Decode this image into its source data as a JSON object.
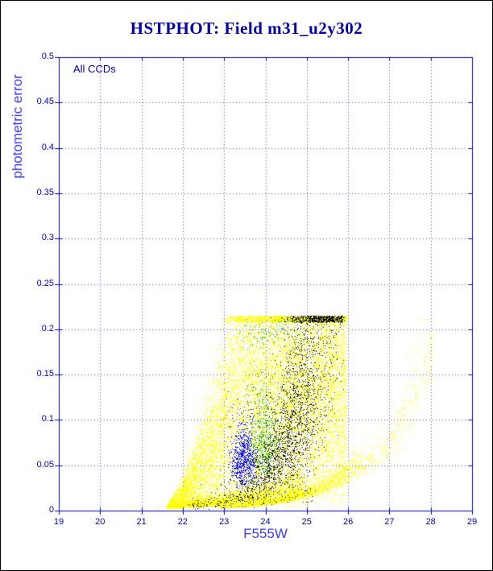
{
  "chart_data": {
    "type": "scatter",
    "title": "HSTPHOT: Field m31_u2y302",
    "annotation": "All CCDs",
    "xlabel": "F555W",
    "ylabel": "photometric error",
    "xlim": [
      19,
      29
    ],
    "ylim": [
      0,
      0.5
    ],
    "x_ticks": [
      19,
      20,
      21,
      22,
      23,
      24,
      25,
      26,
      27,
      28,
      29
    ],
    "x_tick_labels": [
      "19",
      "20",
      "21",
      "22",
      "23",
      "24",
      "25",
      "26",
      "27",
      "28",
      "29"
    ],
    "y_ticks": [
      0,
      0.05,
      0.1,
      0.15,
      0.2,
      0.25,
      0.3,
      0.35,
      0.4,
      0.45,
      0.5
    ],
    "y_tick_labels": [
      "0",
      "0.05",
      "0.1",
      "0.15",
      "0.2",
      "0.25",
      "0.3",
      "0.35",
      "0.4",
      "0.45",
      "0.5"
    ],
    "grid": "dotted-major",
    "legend": "none",
    "error_cap": 0.215,
    "palette": {
      "title": "#0000aa",
      "axis": "#0000cc",
      "grid": "#4444cc",
      "axis_label": "#3c3cff",
      "tick_label": "#0000cc",
      "background": "#ffffff",
      "frame_border": "#000000"
    },
    "series": [
      {
        "name": "all-ccds-main (yellow)",
        "color": "#ffff00"
      },
      {
        "name": "ccd-overlay-black",
        "color": "#000000"
      },
      {
        "name": "ccd-overlay-green",
        "color": "#00b400"
      },
      {
        "name": "ccd-overlay-blue",
        "color": "#0000ff"
      }
    ],
    "point_clusters": [
      {
        "name": "yellow-main-cloud",
        "color": "#ffff00",
        "kind": "fan",
        "n": 14000,
        "x_min": 21.6,
        "x_max": 25.95,
        "x_bias": 0.75,
        "env_x0": 21.5,
        "env_scale": 1.85,
        "env_pow": 1.5,
        "y_cap": 0.215,
        "y_bias": 0.6,
        "jitter": 0.25
      },
      {
        "name": "yellow-bottom-edge",
        "color": "#ffff00",
        "kind": "ridge",
        "n": 3000,
        "x_min": 21.65,
        "x_max": 24.9,
        "a": 0.006,
        "b": 0.45,
        "x0": 21.6,
        "s": 0.35,
        "y_cap": 0.215
      },
      {
        "name": "yellow-second-sequence",
        "color": "#ffff00",
        "kind": "ridge",
        "n": 2000,
        "x_min": 22.9,
        "x_max": 26.35,
        "a": 0.0042,
        "b": 0.78,
        "x0": 23.0,
        "s": 0.17,
        "y_cap": 0.215
      },
      {
        "name": "yellow-right-arc",
        "color": "#ffff00",
        "kind": "ridge",
        "n": 400,
        "x_min": 26.35,
        "x_max": 28.1,
        "a": 0.048,
        "b": 0.8,
        "x0": 26.4,
        "s": 0.16,
        "y_cap": 0.215
      },
      {
        "name": "yellow-left-sparse",
        "color": "#ffff00",
        "kind": "band",
        "n": 14,
        "x_min": 19.95,
        "x_max": 21.5,
        "y_lo": 0.002,
        "y_hi": 0.007
      },
      {
        "name": "yellow-top-right-sparse",
        "color": "#ffff00",
        "kind": "band",
        "n": 22,
        "x_min": 27.3,
        "x_max": 28.05,
        "y_lo": 0.17,
        "y_hi": 0.213
      },
      {
        "name": "black-deep-ridge",
        "color": "#000000",
        "kind": "ridge",
        "n": 2700,
        "x_mu": 24.75,
        "x_sigma": 0.7,
        "x_min": 22.8,
        "x_max": 25.9,
        "a": 0.02,
        "b": 1.0,
        "x0": 23.0,
        "s": 0.5,
        "y_cap": 0.215
      },
      {
        "name": "black-bottom-sparse",
        "color": "#000000",
        "kind": "ridge",
        "n": 220,
        "x_min": 22.1,
        "x_max": 25.2,
        "a": 0.006,
        "b": 0.5,
        "x0": 22.0,
        "s": 0.5,
        "y_cap": 0.215
      },
      {
        "name": "green-clump",
        "color": "#00b400",
        "kind": "blob",
        "n": 430,
        "x_mu": 23.95,
        "x_sigma": 0.19,
        "x_min": 23.4,
        "x_max": 24.55,
        "y_med": 0.085,
        "y_s": 0.38,
        "y_lo": 0.03,
        "y_hi": 0.175
      },
      {
        "name": "green-top-band",
        "color": "#00b400",
        "kind": "blob",
        "n": 140,
        "x_mu": 24.15,
        "x_sigma": 0.45,
        "x_min": 23.2,
        "x_max": 25.3,
        "y_med": 0.195,
        "y_s": 0.05,
        "y_lo": 0.165,
        "y_hi": 0.213
      },
      {
        "name": "blue-clump",
        "color": "#0000ff",
        "kind": "blob",
        "n": 800,
        "x_mu": 23.45,
        "x_sigma": 0.16,
        "x_min": 23.0,
        "x_max": 23.95,
        "y_med": 0.06,
        "y_s": 0.33,
        "y_lo": 0.022,
        "y_hi": 0.14
      }
    ]
  }
}
